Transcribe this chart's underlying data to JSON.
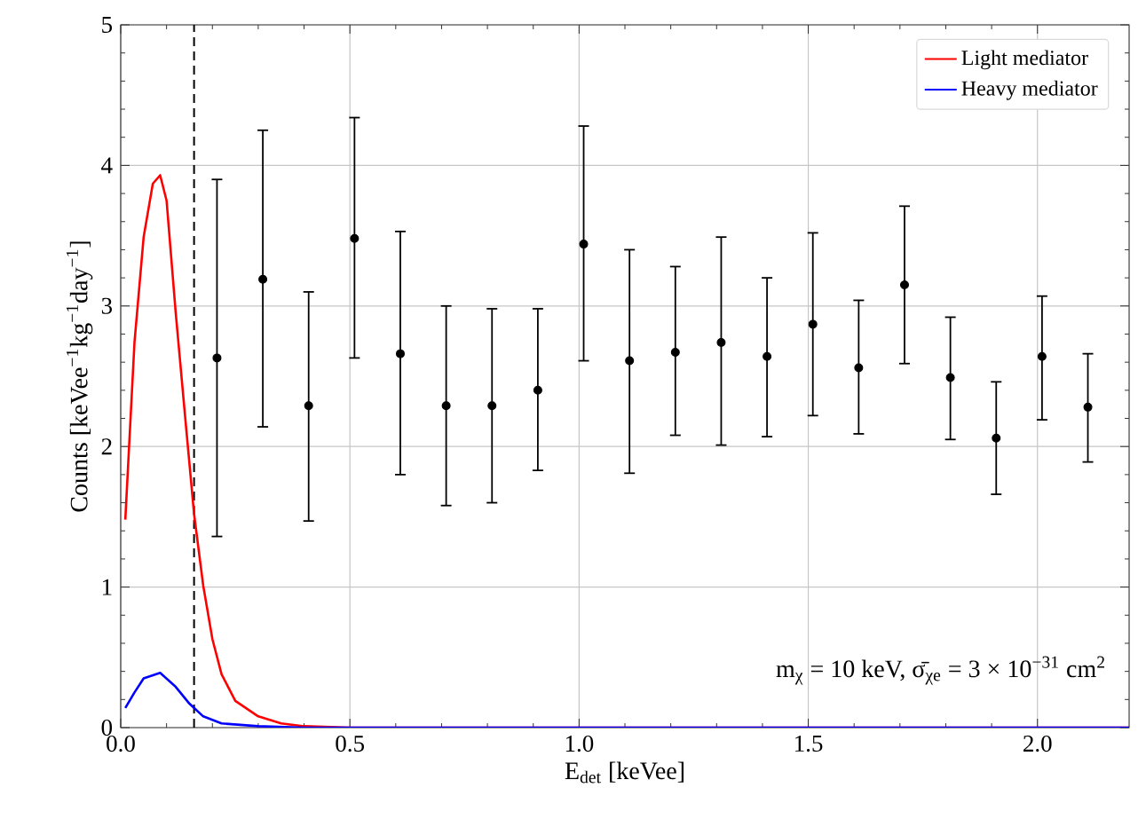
{
  "chart_data": {
    "type": "line",
    "xlabel": "E$_{det}$ [keVee]",
    "ylabel": "Counts [keVee$^{−1}$kg$^{−1}$day$^{−1}$]",
    "xlim": [
      0,
      2.2
    ],
    "ylim": [
      0,
      5
    ],
    "xticks": [
      {
        "value": 0,
        "label": "0.0"
      },
      0.5,
      {
        "value": 1,
        "label": "1.0"
      },
      1.5,
      {
        "value": 2,
        "label": "2.0"
      }
    ],
    "yticks": [
      0,
      1,
      2,
      3,
      4,
      5
    ],
    "grid": true,
    "legend": "top right",
    "series": [
      {
        "name": "Light mediator",
        "color": "#ff0000",
        "x": [
          0.01,
          0.03,
          0.05,
          0.07,
          0.086,
          0.1,
          0.12,
          0.14,
          0.16,
          0.18,
          0.2,
          0.22,
          0.25,
          0.3,
          0.35,
          0.4,
          0.5,
          2.2
        ],
        "values": [
          1.48,
          2.74,
          3.49,
          3.87,
          3.93,
          3.75,
          2.95,
          2.23,
          1.52,
          1.01,
          0.63,
          0.38,
          0.19,
          0.08,
          0.03,
          0.01,
          0,
          0
        ]
      },
      {
        "name": "Heavy mediator",
        "color": "#0000ff",
        "x": [
          0.01,
          0.03,
          0.05,
          0.086,
          0.12,
          0.15,
          0.18,
          0.22,
          0.3,
          0.4,
          2.2
        ],
        "values": [
          0.14,
          0.25,
          0.35,
          0.39,
          0.29,
          0.17,
          0.08,
          0.03,
          0.01,
          0,
          0
        ]
      },
      {
        "type": "scatter",
        "color": "#000000",
        "x": [
          0.21,
          0.31,
          0.41,
          0.51,
          0.61,
          0.71,
          0.81,
          0.91,
          1.01,
          1.11,
          1.21,
          1.31,
          1.41,
          1.51,
          1.61,
          1.71,
          1.81,
          1.91,
          2.01,
          2.11
        ],
        "values": [
          2.63,
          3.19,
          2.29,
          3.48,
          2.66,
          2.29,
          2.29,
          2.4,
          3.44,
          2.61,
          2.67,
          2.74,
          2.64,
          2.87,
          2.56,
          3.15,
          2.49,
          2.06,
          2.64,
          2.28
        ],
        "errors": [
          [
            1.36,
            3.9
          ],
          [
            2.14,
            4.25
          ],
          [
            1.47,
            3.1
          ],
          [
            2.63,
            4.34
          ],
          [
            1.8,
            3.53
          ],
          [
            1.58,
            3.0
          ],
          [
            1.6,
            2.98
          ],
          [
            1.83,
            2.98
          ],
          [
            2.61,
            4.28
          ],
          [
            1.81,
            3.4
          ],
          [
            2.08,
            3.28
          ],
          [
            2.01,
            3.49
          ],
          [
            2.07,
            3.2
          ],
          [
            2.22,
            3.52
          ],
          [
            2.09,
            3.04
          ],
          [
            2.59,
            3.71
          ],
          [
            2.05,
            2.92
          ],
          [
            1.66,
            2.46
          ],
          [
            2.19,
            3.07
          ],
          [
            1.89,
            2.66
          ]
        ]
      }
    ],
    "ref_lines": [
      {
        "axis": "x",
        "value": 0.16,
        "color": "#000000",
        "line_style": "dashed"
      }
    ],
    "annotations": [
      "m$_{χ}$ = 10 keV, σ̄$_{χe}$ = 3 × 10$^{−31}$ cm$^{2}$"
    ]
  }
}
